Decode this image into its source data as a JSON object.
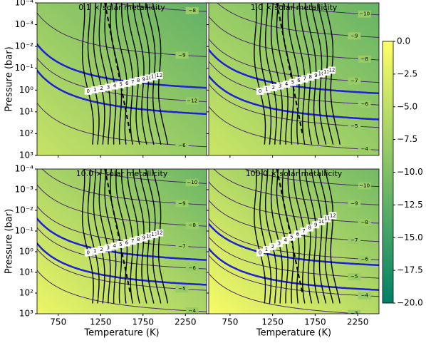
{
  "chart_data": {
    "type": "contour",
    "panels": [
      {
        "title": "0.1 × solar metallicity",
        "contour_labels": [
          "−8",
          "−9",
          "−12",
          "−6"
        ]
      },
      {
        "title": "1.0 × solar metallicity",
        "contour_labels": [
          "−10",
          "−9",
          "−8",
          "−7",
          "−6",
          "−5",
          "−4"
        ]
      },
      {
        "title": "10.0 × solar metallicity",
        "contour_labels": [
          "−10",
          "−9",
          "−8",
          "−7",
          "−6",
          "−5",
          "−4"
        ]
      },
      {
        "title": "100.0 × solar metallicity",
        "contour_labels": [
          "−10",
          "−9",
          "−8",
          "−7",
          "−6",
          "−5",
          "−4",
          "−3"
        ]
      }
    ],
    "xlabel": "Temperature (K)",
    "ylabel": "Pressure (bar)",
    "xlim": [
      500,
      2500
    ],
    "xticks": [
      750,
      1250,
      1750,
      2250
    ],
    "ylim": [
      0.0001,
      1000
    ],
    "log_y": true,
    "yticks": [
      {
        "value": 0.0001,
        "label": "10⁻⁴"
      },
      {
        "value": 0.001,
        "label": "10⁻³"
      },
      {
        "value": 0.01,
        "label": "10⁻²"
      },
      {
        "value": 0.1,
        "label": "10⁻¹"
      },
      {
        "value": 1,
        "label": "10⁰"
      },
      {
        "value": 10,
        "label": "10¹"
      },
      {
        "value": 100,
        "label": "10²"
      },
      {
        "value": 1000,
        "label": "10³"
      }
    ],
    "profile_labels": [
      0,
      1,
      2,
      3,
      4,
      5,
      6,
      7,
      8,
      9,
      10,
      11,
      12
    ],
    "colorbar": {
      "lim": [
        -20,
        0
      ],
      "ticks": [
        {
          "value": 0,
          "label": "0.0"
        },
        {
          "value": -2.5,
          "label": "−2.5"
        },
        {
          "value": -5,
          "label": "−5.0"
        },
        {
          "value": -7.5,
          "label": "−7.5"
        },
        {
          "value": -10,
          "label": "−10.0"
        },
        {
          "value": -12.5,
          "label": "−12.5"
        },
        {
          "value": -15,
          "label": "−15.0"
        },
        {
          "value": -17.5,
          "label": "−17.5"
        },
        {
          "value": -20,
          "label": "−20.0"
        }
      ]
    }
  }
}
